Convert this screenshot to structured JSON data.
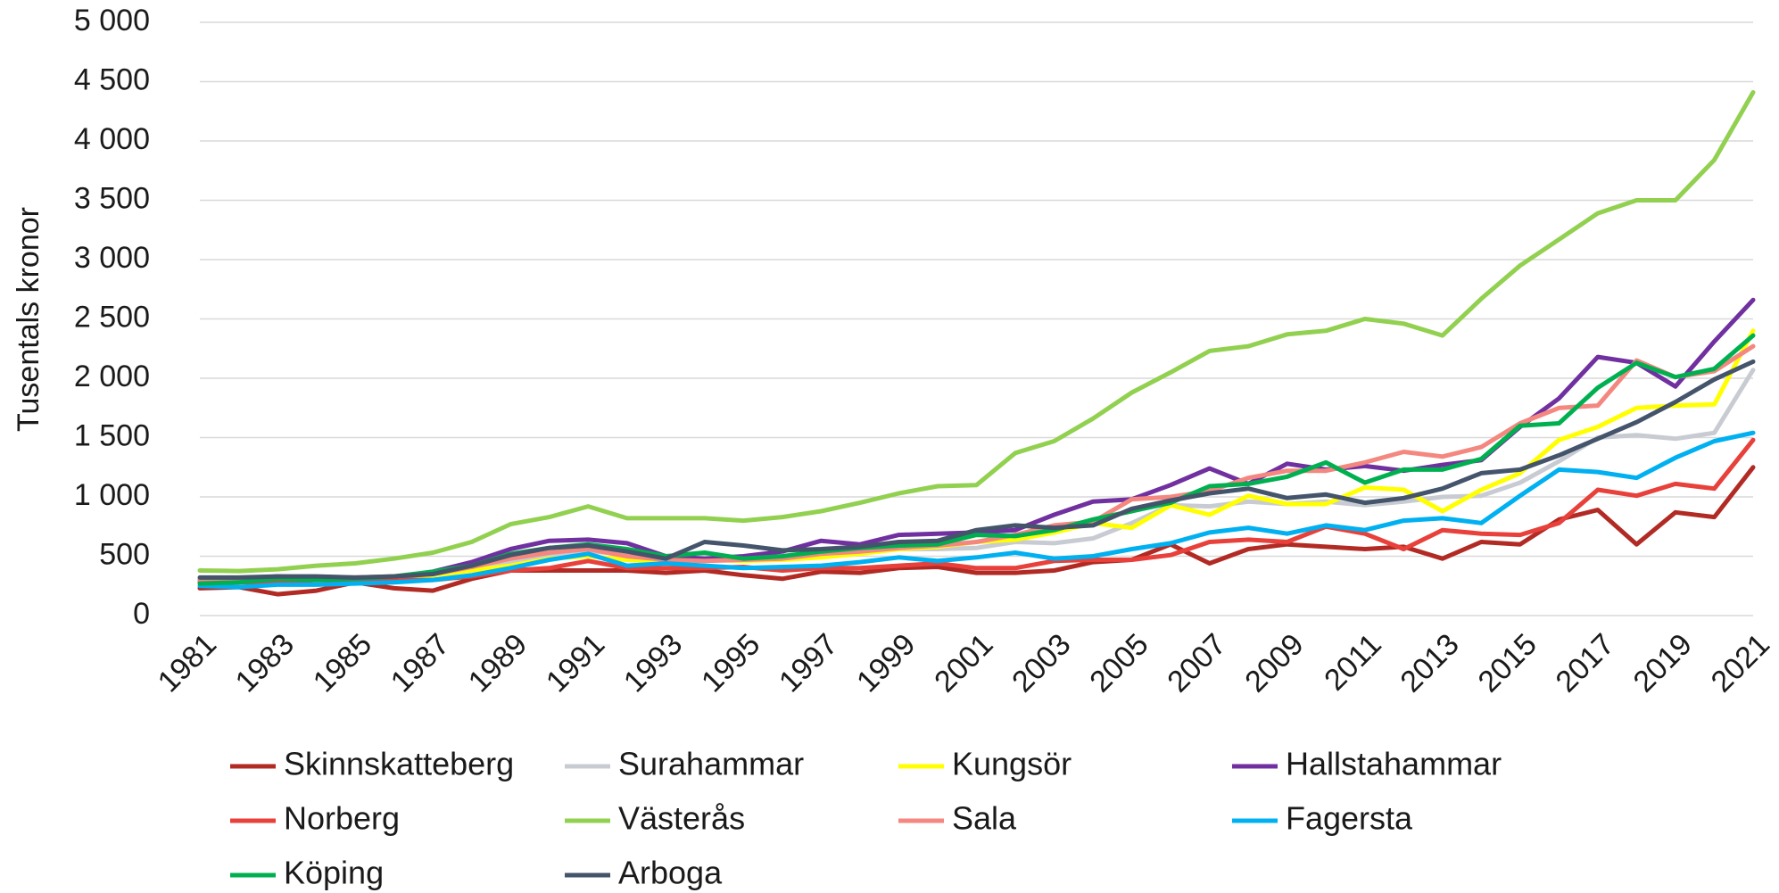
{
  "chart_data": {
    "type": "line",
    "y_label": "Tusentals kronor",
    "x": [
      1981,
      1982,
      1983,
      1984,
      1985,
      1986,
      1987,
      1988,
      1989,
      1990,
      1991,
      1992,
      1993,
      1994,
      1995,
      1996,
      1997,
      1998,
      1999,
      2000,
      2001,
      2002,
      2003,
      2004,
      2005,
      2006,
      2007,
      2008,
      2009,
      2010,
      2011,
      2012,
      2013,
      2014,
      2015,
      2016,
      2017,
      2018,
      2019,
      2020,
      2021
    ],
    "xlim": [
      1981,
      2021
    ],
    "xticks": [
      1981,
      1983,
      1985,
      1987,
      1989,
      1991,
      1993,
      1995,
      1997,
      1999,
      2001,
      2003,
      2005,
      2007,
      2009,
      2011,
      2013,
      2015,
      2017,
      2019,
      2021
    ],
    "ylim": [
      0,
      5000
    ],
    "yticks": [
      0,
      500,
      {
        "value": 1000,
        "label": "1 000"
      },
      {
        "value": 1500,
        "label": "1 500"
      },
      {
        "value": 2000,
        "label": "2 000"
      },
      {
        "value": 2500,
        "label": "2 500"
      },
      {
        "value": 3000,
        "label": "3 000"
      },
      {
        "value": 3500,
        "label": "3 500"
      },
      {
        "value": 4000,
        "label": "4 000"
      },
      {
        "value": 4500,
        "label": "4 500"
      },
      {
        "value": 5000,
        "label": "5 000"
      }
    ],
    "grid": true,
    "legend": "bottom",
    "series": [
      {
        "name": "Skinnskatteberg",
        "color": "#b22a24",
        "values": [
          230,
          240,
          180,
          210,
          280,
          230,
          210,
          310,
          380,
          380,
          380,
          380,
          360,
          380,
          340,
          310,
          370,
          360,
          400,
          410,
          360,
          360,
          380,
          450,
          470,
          600,
          440,
          560,
          600,
          580,
          560,
          580,
          480,
          620,
          600,
          810,
          890,
          600,
          870,
          830,
          1250
        ]
      },
      {
        "name": "Surahammar",
        "color": "#c8ccd2",
        "values": [
          300,
          300,
          310,
          320,
          320,
          330,
          350,
          400,
          450,
          500,
          540,
          520,
          500,
          500,
          490,
          500,
          510,
          530,
          560,
          560,
          570,
          620,
          610,
          650,
          780,
          930,
          920,
          960,
          940,
          960,
          930,
          960,
          1000,
          1010,
          1120,
          1300,
          1500,
          1520,
          1490,
          1540,
          2070
        ]
      },
      {
        "name": "Kungsör",
        "color": "#ffff00",
        "values": [
          290,
          290,
          300,
          310,
          310,
          320,
          340,
          380,
          420,
          480,
          500,
          470,
          450,
          470,
          460,
          470,
          490,
          520,
          560,
          580,
          620,
          640,
          700,
          780,
          740,
          930,
          850,
          1010,
          940,
          940,
          1080,
          1060,
          880,
          1060,
          1200,
          1480,
          1590,
          1750,
          1770,
          1780,
          2400
        ]
      },
      {
        "name": "Hallstahammar",
        "color": "#7030a0",
        "values": [
          300,
          310,
          330,
          320,
          310,
          320,
          370,
          450,
          560,
          630,
          640,
          610,
          500,
          480,
          500,
          540,
          630,
          600,
          680,
          690,
          700,
          720,
          850,
          960,
          980,
          1100,
          1240,
          1110,
          1280,
          1230,
          1260,
          1220,
          1270,
          1310,
          1590,
          1830,
          2180,
          2130,
          1930,
          2310,
          2660
        ]
      },
      {
        "name": "Norberg",
        "color": "#e8403a",
        "values": [
          280,
          280,
          280,
          300,
          290,
          300,
          300,
          330,
          380,
          400,
          460,
          400,
          400,
          400,
          410,
          380,
          400,
          400,
          420,
          440,
          400,
          400,
          460,
          470,
          470,
          510,
          620,
          640,
          620,
          750,
          690,
          560,
          720,
          690,
          680,
          780,
          1060,
          1010,
          1110,
          1070,
          1480
        ]
      },
      {
        "name": "Västerås",
        "color": "#92d050",
        "values": [
          380,
          375,
          390,
          420,
          440,
          480,
          530,
          620,
          770,
          830,
          920,
          820,
          820,
          820,
          800,
          830,
          880,
          950,
          1030,
          1090,
          1100,
          1370,
          1470,
          1660,
          1880,
          2050,
          2230,
          2270,
          2370,
          2400,
          2500,
          2460,
          2360,
          2670,
          2950,
          3170,
          3390,
          3500,
          3500,
          3840,
          4410
        ]
      },
      {
        "name": "Sala",
        "color": "#f4877f",
        "values": [
          300,
          310,
          320,
          320,
          320,
          330,
          350,
          410,
          480,
          530,
          560,
          500,
          470,
          460,
          470,
          480,
          520,
          540,
          570,
          590,
          620,
          680,
          760,
          790,
          980,
          1000,
          1050,
          1160,
          1220,
          1220,
          1290,
          1380,
          1340,
          1420,
          1620,
          1750,
          1770,
          2150,
          2010,
          2060,
          2270
        ]
      },
      {
        "name": "Fagersta",
        "color": "#00b0f0",
        "values": [
          250,
          240,
          260,
          260,
          270,
          280,
          300,
          340,
          400,
          470,
          520,
          420,
          440,
          420,
          400,
          410,
          420,
          450,
          490,
          460,
          490,
          530,
          480,
          500,
          560,
          610,
          700,
          740,
          690,
          760,
          720,
          800,
          820,
          780,
          1010,
          1230,
          1210,
          1160,
          1330,
          1470,
          1540
        ]
      },
      {
        "name": "Köping",
        "color": "#00b050",
        "values": [
          270,
          280,
          310,
          300,
          310,
          330,
          370,
          420,
          520,
          570,
          600,
          560,
          500,
          530,
          480,
          500,
          540,
          570,
          590,
          600,
          680,
          670,
          720,
          810,
          880,
          950,
          1090,
          1110,
          1170,
          1290,
          1120,
          1230,
          1230,
          1320,
          1600,
          1620,
          1920,
          2130,
          2010,
          2080,
          2360
        ]
      },
      {
        "name": "Arboga",
        "color": "#44546a",
        "values": [
          320,
          320,
          330,
          330,
          320,
          330,
          350,
          420,
          510,
          570,
          590,
          540,
          480,
          620,
          590,
          550,
          560,
          580,
          620,
          630,
          720,
          760,
          740,
          760,
          900,
          970,
          1030,
          1070,
          990,
          1020,
          950,
          990,
          1070,
          1200,
          1230,
          1350,
          1490,
          1630,
          1800,
          1990,
          2140
        ]
      }
    ]
  }
}
